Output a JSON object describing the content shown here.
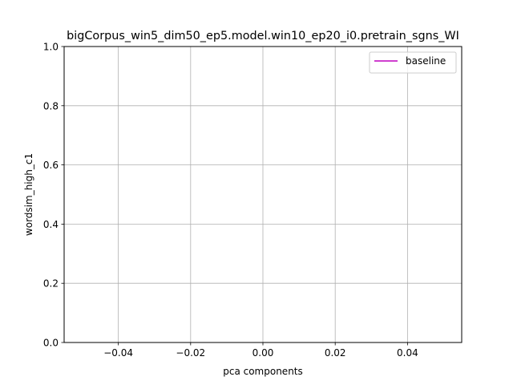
{
  "chart_data": {
    "type": "line",
    "title": "bigCorpus_win5_dim50_ep5.model.win10_ep20_i0.pretrain_sgns_WI",
    "xlabel": "pca components",
    "ylabel": "wordsim_high_c1",
    "xlim": [
      -0.055,
      0.055
    ],
    "ylim": [
      0,
      1
    ],
    "x_ticks": [
      -0.04,
      -0.02,
      0.0,
      0.02,
      0.04
    ],
    "x_tick_labels": [
      "−0.04",
      "−0.02",
      "0.00",
      "0.02",
      "0.04"
    ],
    "y_ticks": [
      0.0,
      0.2,
      0.4,
      0.6,
      0.8,
      1.0
    ],
    "y_tick_labels": [
      "0.0",
      "0.2",
      "0.4",
      "0.6",
      "0.8",
      "1.0"
    ],
    "grid": true,
    "legend_position": "top-right",
    "series": [
      {
        "name": "baseline",
        "color": "#bf00bf",
        "x": [],
        "y": []
      }
    ]
  }
}
